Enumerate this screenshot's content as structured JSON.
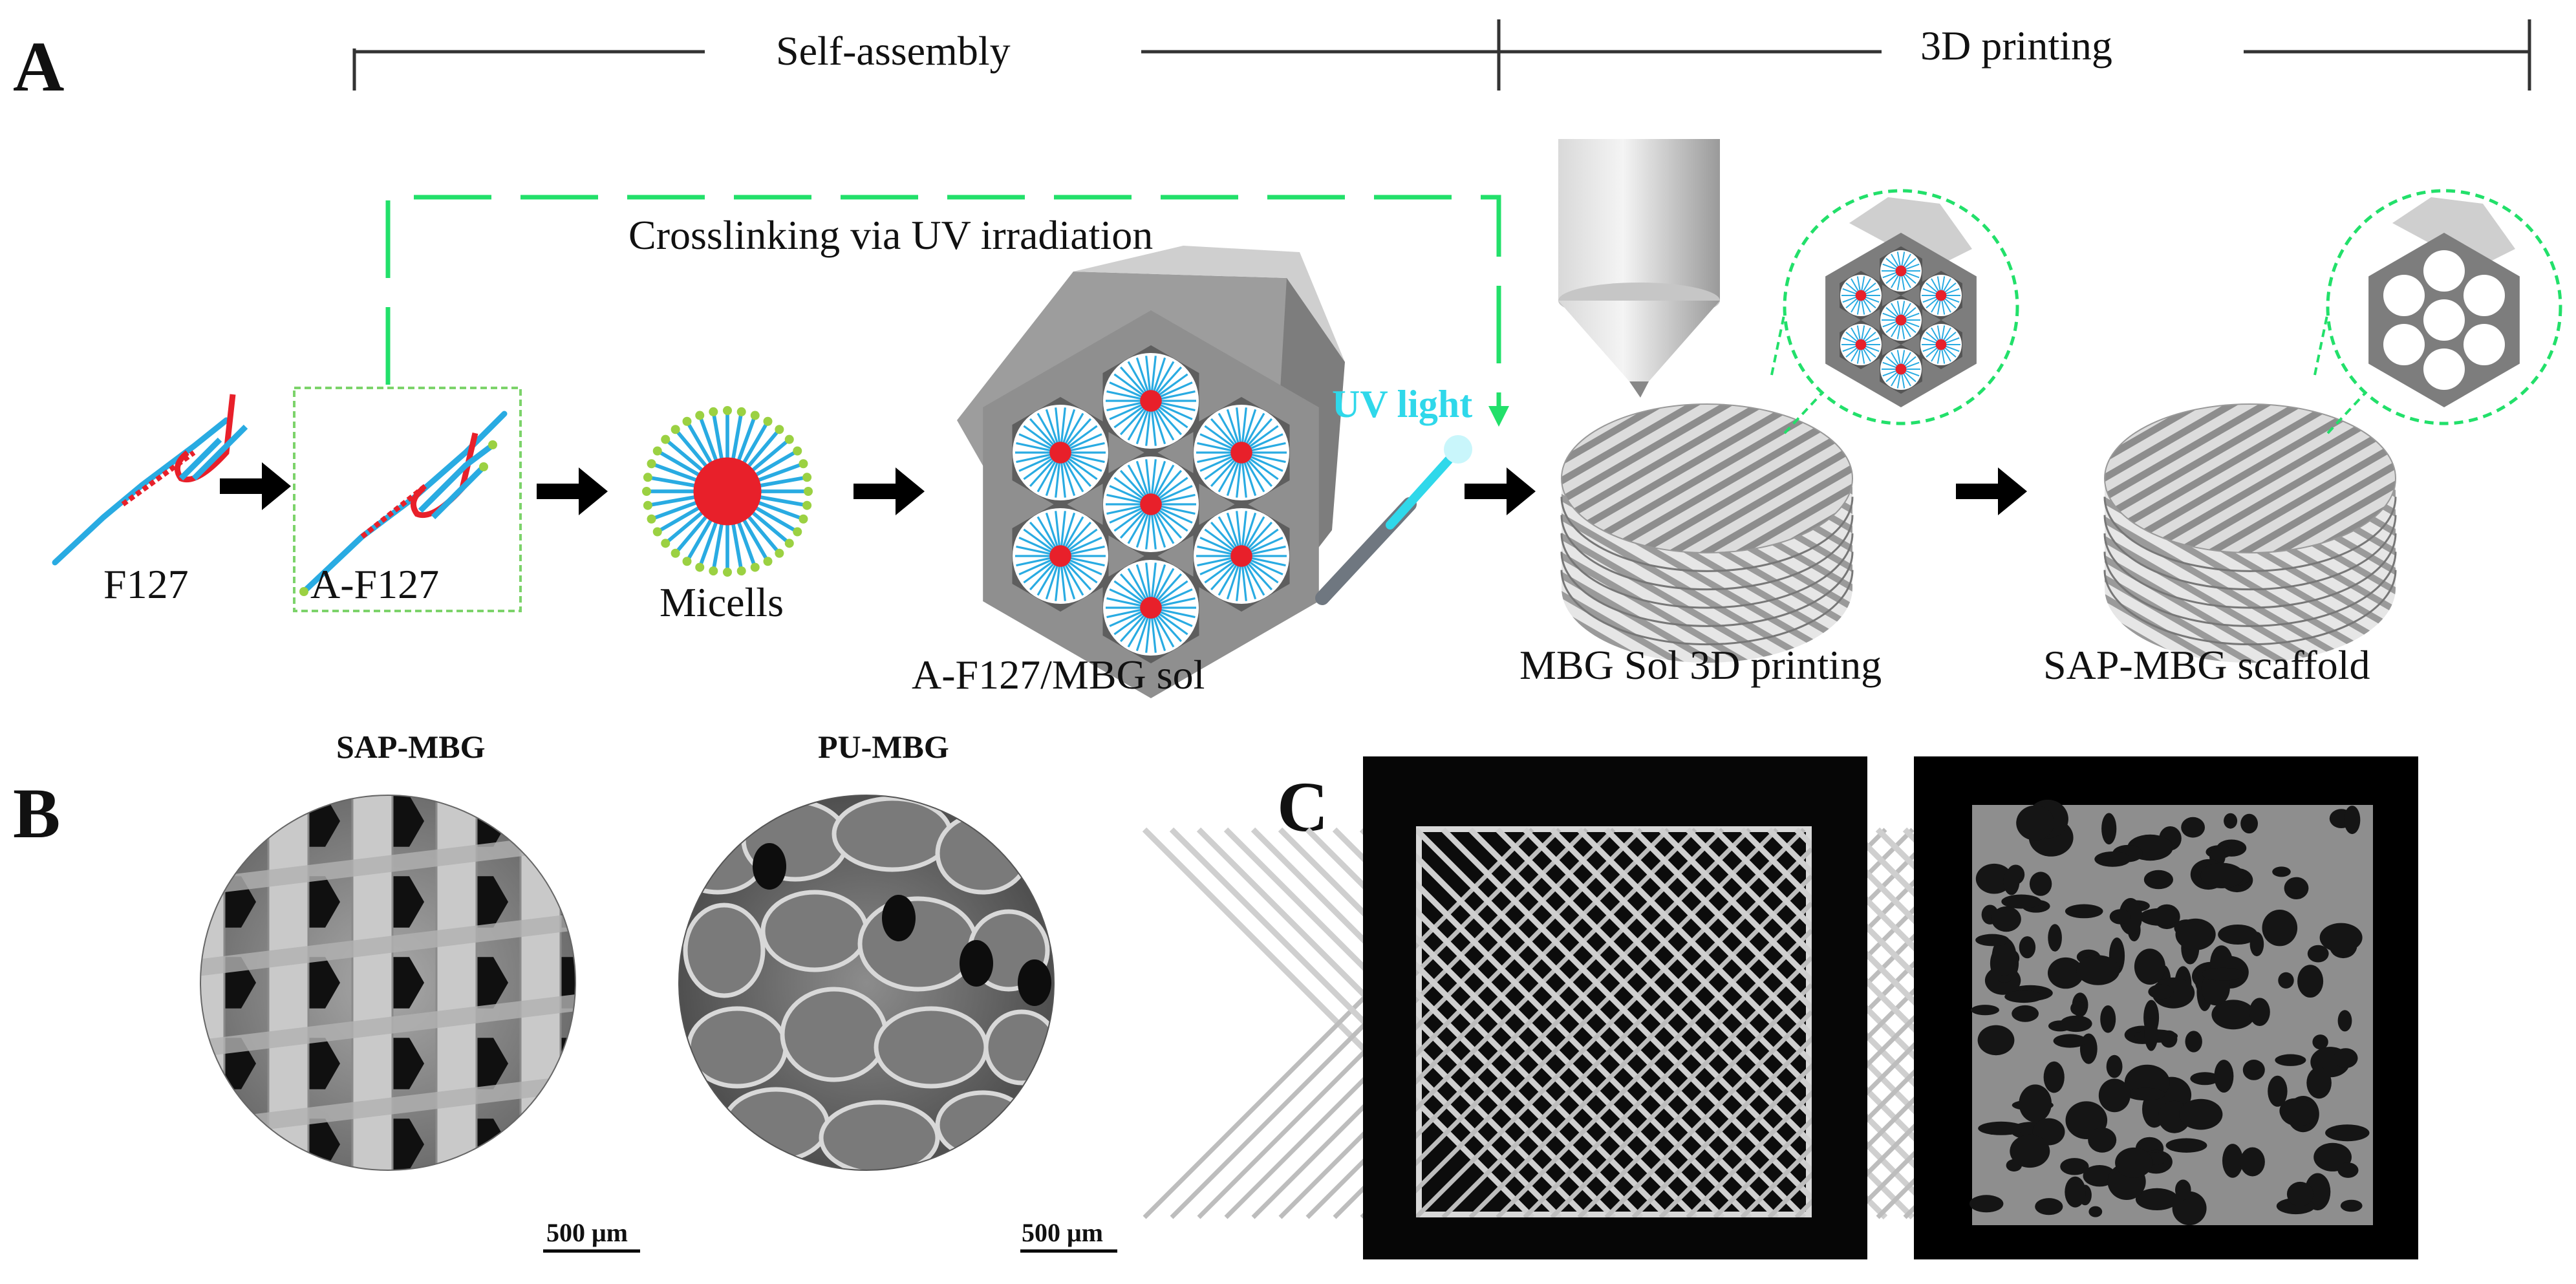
{
  "panels": {
    "a": "A",
    "b": "B",
    "c": "C"
  },
  "timeline": {
    "self_assembly": "Self-assembly",
    "printing": "3D printing"
  },
  "crosslink_label": "Crosslinking via UV irradiation",
  "uv_light_label": "UV light",
  "stages": {
    "f127": "F127",
    "a_f127": "A-F127",
    "micelles": "Micells",
    "sol": "A-F127/MBG sol",
    "printing": "MBG Sol 3D printing",
    "scaffold": "SAP-MBG scaffold"
  },
  "sem": {
    "left_title": "SAP-MBG",
    "right_title": "PU-MBG",
    "left_scale": "500 μm",
    "right_scale": "500 μm"
  },
  "colors": {
    "chain_blue": "#29abe2",
    "block_red": "#e8202a",
    "end_green": "#9bd142",
    "dash_green": "#22e06a",
    "uv_cyan": "#2fd8ea",
    "hex_grey": "#8f8f8f"
  }
}
